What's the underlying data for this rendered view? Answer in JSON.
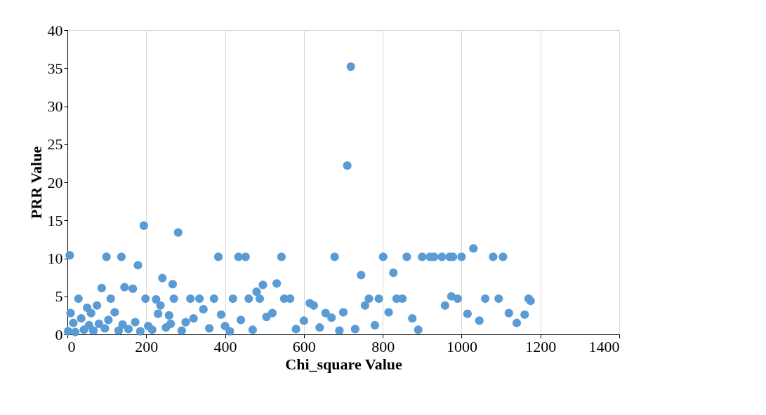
{
  "chart_data": {
    "type": "scatter",
    "xlabel": "Chi_square Value",
    "ylabel": "PRR Value",
    "xlim": [
      0,
      1400
    ],
    "xticks": [
      0,
      200,
      400,
      600,
      800,
      1000,
      1200,
      1400
    ],
    "ylim": [
      0,
      40
    ],
    "yticks": [
      0,
      5,
      10,
      15,
      20,
      25,
      30,
      35,
      40
    ],
    "grid": "x",
    "marker": "circle",
    "legend": false,
    "series": [
      {
        "color": "#5b9bd5",
        "x": [
          2,
          6,
          8,
          15,
          20,
          28,
          35,
          42,
          50,
          55,
          60,
          66,
          75,
          80,
          87,
          95,
          99,
          104,
          110,
          120,
          130,
          137,
          140,
          145,
          155,
          166,
          172,
          179,
          185,
          194,
          198,
          205,
          215,
          225,
          230,
          236,
          241,
          250,
          258,
          262,
          267,
          270,
          281,
          290,
          300,
          312,
          320,
          335,
          345,
          360,
          372,
          383,
          390,
          400,
          412,
          420,
          434,
          440,
          452,
          460,
          470,
          480,
          488,
          496,
          505,
          520,
          531,
          543,
          550,
          565,
          580,
          600,
          615,
          625,
          640,
          655,
          670,
          678,
          690,
          700,
          710,
          719,
          730,
          745,
          755,
          765,
          780,
          790,
          801,
          815,
          827,
          835,
          850,
          861,
          875,
          890,
          900,
          920,
          930,
          950,
          958,
          970,
          974,
          978,
          990,
          1000,
          1015,
          1030,
          1045,
          1060,
          1080,
          1094,
          1105,
          1120,
          1140,
          1160,
          1170,
          1175
        ],
        "values": [
          0.4,
          10.4,
          2.8,
          1.5,
          0.3,
          4.7,
          2.1,
          0.6,
          3.5,
          1.2,
          2.8,
          0.5,
          3.8,
          1.4,
          6.1,
          0.8,
          10.2,
          1.9,
          4.7,
          2.9,
          0.5,
          10.2,
          1.3,
          6.2,
          0.7,
          6,
          1.6,
          9.1,
          0.4,
          14.3,
          4.7,
          1.1,
          0.6,
          4.6,
          2.7,
          3.8,
          7.4,
          0.9,
          2.5,
          1.4,
          6.6,
          4.7,
          13.4,
          0.5,
          1.6,
          4.7,
          2.1,
          4.7,
          3.3,
          0.8,
          4.7,
          10.2,
          2.6,
          1.1,
          0.4,
          4.7,
          10.2,
          1.9,
          10.2,
          4.7,
          0.6,
          5.6,
          4.7,
          6.5,
          2.3,
          2.8,
          6.7,
          10.2,
          4.7,
          4.7,
          0.7,
          1.8,
          4.1,
          3.8,
          0.9,
          2.8,
          2.2,
          10.2,
          0.5,
          2.9,
          22.2,
          35.2,
          0.7,
          7.8,
          3.8,
          4.7,
          1.2,
          4.7,
          10.2,
          2.9,
          8.1,
          4.7,
          4.7,
          10.2,
          2.1,
          0.6,
          10.2,
          10.2,
          10.2,
          10.2,
          3.8,
          10.2,
          5,
          10.2,
          4.7,
          10.2,
          2.7,
          11.3,
          1.8,
          4.7,
          10.2,
          4.7,
          10.2,
          2.8,
          1.5,
          2.6,
          4.7,
          4.4
        ]
      }
    ]
  }
}
